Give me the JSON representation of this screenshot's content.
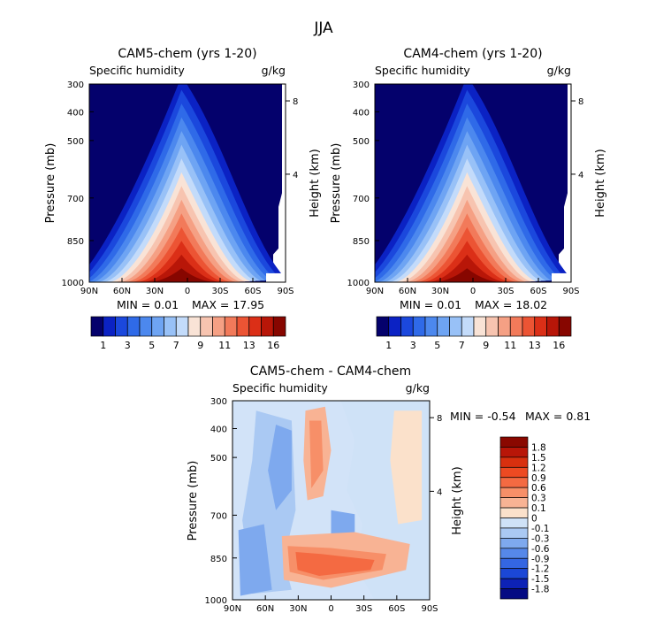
{
  "main_title": "JJA",
  "chart_data": [
    {
      "type": "heatmap",
      "title": "CAM5-chem (yrs 1-20)",
      "variable": "Specific humidity",
      "units": "g/kg",
      "xlabel": "",
      "ylabel": "Pressure (mb)",
      "right_axis_label": "Height (km)",
      "x_ticks": [
        "90N",
        "60N",
        "30N",
        "0",
        "30S",
        "60S",
        "90S"
      ],
      "y_ticks": [
        "300",
        "400",
        "500",
        "700",
        "850",
        "1000"
      ],
      "right_ticks": [
        "8",
        "4"
      ],
      "min": 0.01,
      "max": 17.95,
      "min_text": "MIN =    0.01",
      "max_text": "MAX =   17.95",
      "colorbar_labels": [
        "1",
        "3",
        "5",
        "7",
        "9",
        "11",
        "13",
        "16"
      ],
      "colorbar_colors": [
        "#04016c",
        "#0b22c4",
        "#1b48dd",
        "#2f6ae8",
        "#4c88ee",
        "#6ea4f3",
        "#98c1f7",
        "#c3dbfa",
        "#f9e3d6",
        "#f7c4b0",
        "#f5a084",
        "#f27a5a",
        "#ec5434",
        "#db2f17",
        "#b81608",
        "#870600"
      ]
    },
    {
      "type": "heatmap",
      "title": "CAM4-chem (yrs 1-20)",
      "variable": "Specific humidity",
      "units": "g/kg",
      "xlabel": "",
      "ylabel": "Pressure (mb)",
      "right_axis_label": "Height (km)",
      "x_ticks": [
        "90N",
        "60N",
        "30N",
        "0",
        "30S",
        "60S",
        "90S"
      ],
      "y_ticks": [
        "300",
        "400",
        "500",
        "700",
        "850",
        "1000"
      ],
      "right_ticks": [
        "8",
        "4"
      ],
      "min": 0.01,
      "max": 18.02,
      "min_text": "MIN =    0.01",
      "max_text": "MAX =   18.02",
      "colorbar_labels": [
        "1",
        "3",
        "5",
        "7",
        "9",
        "11",
        "13",
        "16"
      ],
      "colorbar_colors": [
        "#04016c",
        "#0b22c4",
        "#1b48dd",
        "#2f6ae8",
        "#4c88ee",
        "#6ea4f3",
        "#98c1f7",
        "#c3dbfa",
        "#f9e3d6",
        "#f7c4b0",
        "#f5a084",
        "#f27a5a",
        "#ec5434",
        "#db2f17",
        "#b81608",
        "#870600"
      ]
    },
    {
      "type": "heatmap",
      "title": "CAM5-chem - CAM4-chem",
      "variable": "Specific humidity",
      "units": "g/kg",
      "xlabel": "",
      "ylabel": "Pressure (mb)",
      "right_axis_label": "Height (km)",
      "x_ticks": [
        "90N",
        "60N",
        "30N",
        "0",
        "30S",
        "60S",
        "90S"
      ],
      "y_ticks": [
        "300",
        "400",
        "500",
        "700",
        "850",
        "1000"
      ],
      "right_ticks": [
        "8",
        "4"
      ],
      "min": -0.54,
      "max": 0.81,
      "min_text": "MIN =   -0.54",
      "max_text": "MAX =    0.81",
      "colorbar_labels": [
        "1.8",
        "1.5",
        "1.2",
        "0.9",
        "0.6",
        "0.3",
        "0.1",
        "0",
        "-0.1",
        "-0.3",
        "-0.6",
        "-0.9",
        "-1.2",
        "-1.5",
        "-1.8"
      ],
      "colorbar_colors": [
        "#8a0800",
        "#b81608",
        "#d8300f",
        "#ed4a22",
        "#f46a42",
        "#f78f68",
        "#f8b394",
        "#fbe1cb",
        "#cfe2f7",
        "#aac9f3",
        "#7ea9ee",
        "#5688e9",
        "#3466e2",
        "#1b47d6",
        "#0d22b6",
        "#050b83"
      ]
    }
  ]
}
